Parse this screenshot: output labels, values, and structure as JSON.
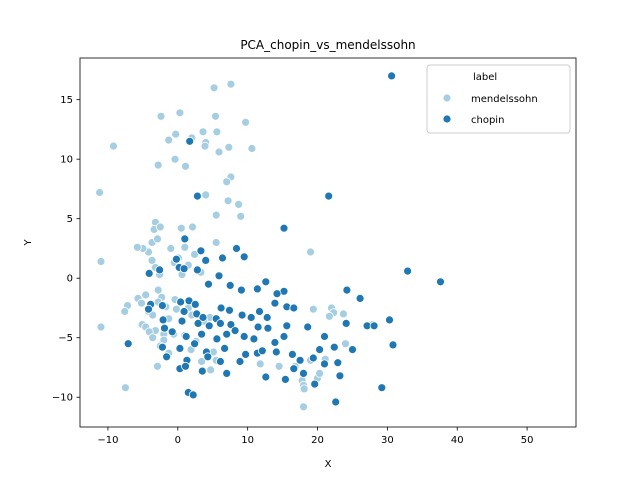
{
  "chart_data": {
    "type": "scatter",
    "title": "PCA_chopin_vs_mendelssohn",
    "xlabel": "X",
    "ylabel": "Y",
    "xlim": [
      -14,
      57
    ],
    "ylim": [
      -12.5,
      18.5
    ],
    "xticks": [
      -10,
      0,
      10,
      20,
      30,
      40,
      50
    ],
    "yticks": [
      -10,
      -5,
      0,
      5,
      10,
      15
    ],
    "grid": false,
    "legend": {
      "title": "label",
      "placement": "top-right"
    },
    "series": [
      {
        "name": "mendelssohn",
        "color": "#a6cee3",
        "points": [
          [
            5.2,
            16.0
          ],
          [
            7.6,
            16.3
          ],
          [
            -2.4,
            13.6
          ],
          [
            0.3,
            13.9
          ],
          [
            5.4,
            13.6
          ],
          [
            9.7,
            13.1
          ],
          [
            3.6,
            12.3
          ],
          [
            5.6,
            12.3
          ],
          [
            -0.3,
            12.1
          ],
          [
            -9.2,
            11.1
          ],
          [
            4.0,
            11.4
          ],
          [
            -1.3,
            11.6
          ],
          [
            2.0,
            11.8
          ],
          [
            3.9,
            11.1
          ],
          [
            7.3,
            11.0
          ],
          [
            10.6,
            10.9
          ],
          [
            5.9,
            10.6
          ],
          [
            -0.4,
            10.0
          ],
          [
            -2.8,
            9.5
          ],
          [
            1.1,
            9.4
          ],
          [
            7.6,
            8.5
          ],
          [
            7.0,
            8.1
          ],
          [
            -11.2,
            7.2
          ],
          [
            4.0,
            7.0
          ],
          [
            7.2,
            6.5
          ],
          [
            8.7,
            6.2
          ],
          [
            5.5,
            5.3
          ],
          [
            9.0,
            5.2
          ],
          [
            -3.2,
            4.7
          ],
          [
            -3.4,
            4.1
          ],
          [
            -2.5,
            4.3
          ],
          [
            0.5,
            4.2
          ],
          [
            2.1,
            4.3
          ],
          [
            5.5,
            3.0
          ],
          [
            -3.7,
            3.0
          ],
          [
            -2.9,
            3.3
          ],
          [
            1.0,
            2.6
          ],
          [
            -4.2,
            2.2
          ],
          [
            -5.0,
            2.5
          ],
          [
            -5.8,
            2.6
          ],
          [
            -1.0,
            2.5
          ],
          [
            2.4,
            2.0
          ],
          [
            -3.7,
            1.5
          ],
          [
            0.1,
            1.7
          ],
          [
            -11.0,
            1.4
          ],
          [
            -0.5,
            1.3
          ],
          [
            1.5,
            1.1
          ],
          [
            -3.2,
            0.9
          ],
          [
            -2.6,
            0.3
          ],
          [
            0.6,
            0.3
          ],
          [
            3.3,
            0.5
          ],
          [
            -2.8,
            -1.0
          ],
          [
            -4.6,
            -1.4
          ],
          [
            -2.3,
            -1.6
          ],
          [
            -5.7,
            -1.7
          ],
          [
            -5.2,
            -2.1
          ],
          [
            -0.4,
            -1.8
          ],
          [
            -7.2,
            -2.3
          ],
          [
            -2.8,
            -2.0
          ],
          [
            -1.7,
            -2.4
          ],
          [
            -4.2,
            -2.8
          ],
          [
            -7.6,
            -2.8
          ],
          [
            -3.6,
            -3.1
          ],
          [
            -0.2,
            -2.6
          ],
          [
            1.5,
            -2.5
          ],
          [
            2.0,
            -3.1
          ],
          [
            -1.3,
            -3.4
          ],
          [
            4.6,
            -3.3
          ],
          [
            3.7,
            -3.6
          ],
          [
            -5.1,
            -3.9
          ],
          [
            -4.6,
            -4.1
          ],
          [
            -11.0,
            -4.1
          ],
          [
            -3.2,
            -4.4
          ],
          [
            -2.0,
            -4.7
          ],
          [
            -0.6,
            -4.7
          ],
          [
            1.0,
            -4.8
          ],
          [
            -4.1,
            -4.5
          ],
          [
            -3.6,
            -5.0
          ],
          [
            -2.0,
            -5.2
          ],
          [
            2.6,
            -5.3
          ],
          [
            -2.5,
            -5.7
          ],
          [
            1.9,
            -6.0
          ],
          [
            5.1,
            -6.2
          ],
          [
            -1.3,
            -6.3
          ],
          [
            3.4,
            -7.0
          ],
          [
            5.5,
            -6.9
          ],
          [
            -2.9,
            -7.4
          ],
          [
            4.7,
            -7.7
          ],
          [
            -7.5,
            -9.2
          ],
          [
            11.8,
            -7.2
          ],
          [
            14.5,
            -7.4
          ],
          [
            16.8,
            -7.4
          ],
          [
            17.8,
            -8.6
          ],
          [
            19.0,
            -6.9
          ],
          [
            20.0,
            -8.4
          ],
          [
            21.1,
            -6.8
          ],
          [
            18.0,
            -9.0
          ],
          [
            20.3,
            -8.0
          ],
          [
            19.4,
            -2.6
          ],
          [
            22.0,
            -2.5
          ],
          [
            22.3,
            -2.9
          ],
          [
            23.7,
            -3.0
          ],
          [
            27.9,
            -3.9
          ],
          [
            21.7,
            -3.2
          ],
          [
            24.0,
            -5.5
          ],
          [
            19.0,
            2.2
          ],
          [
            18.0,
            -10.8
          ],
          [
            18.1,
            -9.3
          ]
        ]
      },
      {
        "name": "chopin",
        "color": "#1f78b4",
        "points": [
          [
            30.6,
            17.0
          ],
          [
            1.7,
            11.5
          ],
          [
            2.8,
            6.9
          ],
          [
            21.6,
            6.9
          ],
          [
            15.2,
            4.2
          ],
          [
            1.0,
            3.3
          ],
          [
            3.3,
            2.3
          ],
          [
            8.4,
            2.5
          ],
          [
            9.5,
            1.8
          ],
          [
            -0.2,
            1.6
          ],
          [
            4.0,
            1.5
          ],
          [
            6.4,
            1.7
          ],
          [
            0.2,
            0.9
          ],
          [
            0.9,
            0.8
          ],
          [
            -4.1,
            0.4
          ],
          [
            -2.6,
            0.7
          ],
          [
            2.8,
            0.7
          ],
          [
            5.9,
            0.2
          ],
          [
            32.9,
            0.6
          ],
          [
            37.6,
            -0.3
          ],
          [
            4.4,
            -0.5
          ],
          [
            7.5,
            -0.6
          ],
          [
            12.6,
            -0.3
          ],
          [
            9.1,
            -1.0
          ],
          [
            11.4,
            -0.9
          ],
          [
            15.2,
            -1.1
          ],
          [
            14.2,
            -1.3
          ],
          [
            24.2,
            -1.0
          ],
          [
            26.1,
            -1.7
          ],
          [
            0.4,
            -2.0
          ],
          [
            1.6,
            -1.9
          ],
          [
            2.5,
            -2.2
          ],
          [
            -3.9,
            -2.2
          ],
          [
            -2.2,
            -2.3
          ],
          [
            13.9,
            -2.1
          ],
          [
            15.6,
            -2.4
          ],
          [
            6.2,
            -2.5
          ],
          [
            7.4,
            -2.7
          ],
          [
            11.7,
            -2.8
          ],
          [
            16.6,
            -2.5
          ],
          [
            -4.2,
            -2.6
          ],
          [
            0.9,
            -2.8
          ],
          [
            2.7,
            -3.0
          ],
          [
            3.6,
            -3.3
          ],
          [
            5.5,
            -3.4
          ],
          [
            9.2,
            -3.1
          ],
          [
            10.5,
            -3.3
          ],
          [
            12.8,
            -3.3
          ],
          [
            -2.1,
            -3.5
          ],
          [
            0.6,
            -3.6
          ],
          [
            2.9,
            -3.8
          ],
          [
            4.5,
            -4.0
          ],
          [
            6.1,
            -3.8
          ],
          [
            7.6,
            -3.9
          ],
          [
            8.2,
            -4.4
          ],
          [
            11.5,
            -4.1
          ],
          [
            12.9,
            -4.2
          ],
          [
            15.6,
            -4.0
          ],
          [
            18.6,
            -4.1
          ],
          [
            24.1,
            -3.8
          ],
          [
            27.1,
            -4.0
          ],
          [
            30.3,
            -3.5
          ],
          [
            -1.9,
            -4.2
          ],
          [
            -0.8,
            -4.5
          ],
          [
            1.2,
            -4.9
          ],
          [
            3.4,
            -4.7
          ],
          [
            5.6,
            -5.1
          ],
          [
            7.0,
            -4.7
          ],
          [
            9.5,
            -4.9
          ],
          [
            10.9,
            -5.1
          ],
          [
            13.9,
            -5.4
          ],
          [
            15.2,
            -4.9
          ],
          [
            21.0,
            -4.9
          ],
          [
            28.1,
            -4.0
          ],
          [
            30.8,
            -5.6
          ],
          [
            -7.1,
            -5.5
          ],
          [
            -2.2,
            -5.8
          ],
          [
            0.3,
            -5.9
          ],
          [
            2.4,
            -5.5
          ],
          [
            4.1,
            -6.2
          ],
          [
            6.7,
            -5.9
          ],
          [
            9.7,
            -6.4
          ],
          [
            11.4,
            -6.3
          ],
          [
            12.1,
            -6.1
          ],
          [
            14.1,
            -6.2
          ],
          [
            16.4,
            -6.4
          ],
          [
            20.3,
            -6.0
          ],
          [
            22.4,
            -5.8
          ],
          [
            25.0,
            -6.0
          ],
          [
            -1.6,
            -6.6
          ],
          [
            1.3,
            -6.9
          ],
          [
            4.3,
            -6.6
          ],
          [
            6.1,
            -7.0
          ],
          [
            8.9,
            -7.0
          ],
          [
            17.5,
            -6.9
          ],
          [
            19.4,
            -6.7
          ],
          [
            21.0,
            -7.2
          ],
          [
            22.9,
            -7.1
          ],
          [
            0.3,
            -7.6
          ],
          [
            1.1,
            -7.4
          ],
          [
            3.5,
            -7.8
          ],
          [
            7.0,
            -8.0
          ],
          [
            12.6,
            -8.3
          ],
          [
            15.4,
            -8.5
          ],
          [
            16.6,
            -7.6
          ],
          [
            18.0,
            -8.0
          ],
          [
            19.6,
            -8.9
          ],
          [
            23.2,
            -8.2
          ],
          [
            1.5,
            -9.6
          ],
          [
            2.2,
            -9.8
          ],
          [
            29.2,
            -9.2
          ],
          [
            22.6,
            -10.4
          ]
        ]
      }
    ]
  }
}
